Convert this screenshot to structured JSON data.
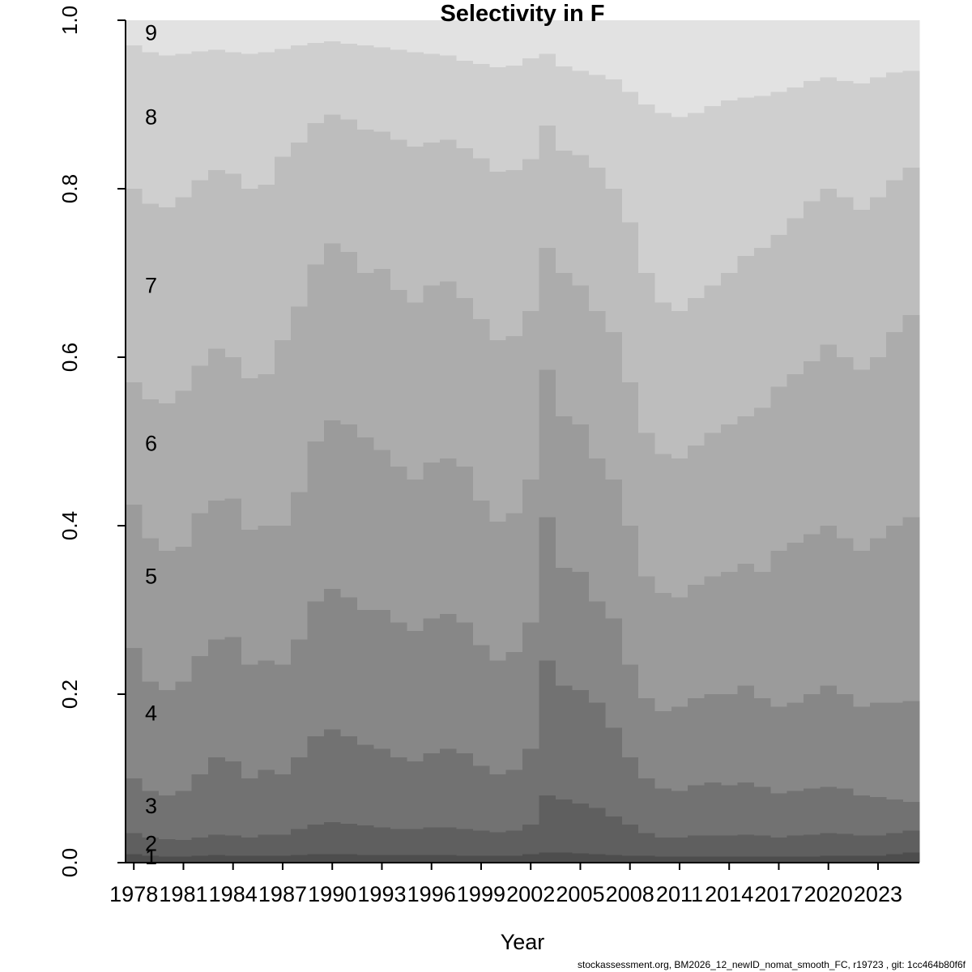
{
  "footer": {
    "text": "stockassessment.org, BM2026_12_newID_nomat_smooth_FC, r19723 , git: 1cc464b80f6f"
  },
  "chart_data": {
    "type": "area",
    "subtype": "stacked-proportion-barplot",
    "title": "Selectivity in F",
    "xlabel": "Year",
    "ylabel": "",
    "ylim": [
      0,
      1
    ],
    "grid": false,
    "legend": "none (age labels 1-9 printed inside left edge of bands)",
    "x": [
      1978,
      1979,
      1980,
      1981,
      1982,
      1983,
      1984,
      1985,
      1986,
      1987,
      1988,
      1989,
      1990,
      1991,
      1992,
      1993,
      1994,
      1995,
      1996,
      1997,
      1998,
      1999,
      2000,
      2001,
      2002,
      2003,
      2004,
      2005,
      2006,
      2007,
      2008,
      2009,
      2010,
      2011,
      2012,
      2013,
      2014,
      2015,
      2016,
      2017,
      2018,
      2019,
      2020,
      2021,
      2022,
      2023,
      2024,
      2025
    ],
    "x_ticks": [
      1978,
      1981,
      1984,
      1987,
      1990,
      1993,
      1996,
      1999,
      2002,
      2005,
      2008,
      2011,
      2014,
      2017,
      2020,
      2023
    ],
    "y_ticks": [
      0,
      0.2,
      0.4,
      0.6,
      0.8,
      1.0
    ],
    "y_tick_labels": [
      "0.0",
      "0.2",
      "0.4",
      "0.6",
      "0.8",
      "1.0"
    ],
    "colors": [
      "#4d4d4d",
      "#5f5f5f",
      "#727272",
      "#878787",
      "#9b9b9b",
      "#acacac",
      "#bdbdbd",
      "#cfcfcf",
      "#e2e2e2"
    ],
    "note": "values are cumulative upper bounds of stacked selectivity proportion per age, estimated from plot",
    "series": [
      {
        "age": "1",
        "cum": [
          0.01,
          0.008,
          0.007,
          0.007,
          0.008,
          0.009,
          0.008,
          0.008,
          0.008,
          0.008,
          0.009,
          0.01,
          0.01,
          0.01,
          0.009,
          0.009,
          0.009,
          0.009,
          0.009,
          0.009,
          0.008,
          0.008,
          0.008,
          0.008,
          0.01,
          0.012,
          0.012,
          0.011,
          0.01,
          0.009,
          0.008,
          0.008,
          0.007,
          0.007,
          0.007,
          0.007,
          0.007,
          0.007,
          0.007,
          0.007,
          0.007,
          0.007,
          0.008,
          0.008,
          0.008,
          0.008,
          0.01,
          0.012
        ]
      },
      {
        "age": "2",
        "cum": [
          0.035,
          0.03,
          0.028,
          0.027,
          0.03,
          0.033,
          0.032,
          0.03,
          0.033,
          0.033,
          0.04,
          0.045,
          0.048,
          0.046,
          0.044,
          0.042,
          0.04,
          0.04,
          0.042,
          0.042,
          0.04,
          0.038,
          0.036,
          0.038,
          0.045,
          0.08,
          0.075,
          0.07,
          0.065,
          0.055,
          0.045,
          0.035,
          0.03,
          0.03,
          0.032,
          0.032,
          0.032,
          0.033,
          0.032,
          0.03,
          0.032,
          0.033,
          0.035,
          0.034,
          0.032,
          0.032,
          0.035,
          0.038
        ]
      },
      {
        "age": "3",
        "cum": [
          0.1,
          0.085,
          0.08,
          0.085,
          0.105,
          0.125,
          0.12,
          0.1,
          0.11,
          0.105,
          0.125,
          0.15,
          0.158,
          0.15,
          0.14,
          0.135,
          0.125,
          0.12,
          0.13,
          0.135,
          0.13,
          0.115,
          0.105,
          0.11,
          0.135,
          0.24,
          0.21,
          0.205,
          0.19,
          0.16,
          0.125,
          0.1,
          0.088,
          0.085,
          0.092,
          0.095,
          0.092,
          0.095,
          0.09,
          0.082,
          0.085,
          0.088,
          0.09,
          0.088,
          0.08,
          0.078,
          0.075,
          0.072
        ]
      },
      {
        "age": "4",
        "cum": [
          0.255,
          0.215,
          0.205,
          0.215,
          0.245,
          0.265,
          0.268,
          0.235,
          0.24,
          0.235,
          0.265,
          0.31,
          0.325,
          0.315,
          0.3,
          0.3,
          0.285,
          0.275,
          0.29,
          0.295,
          0.285,
          0.258,
          0.24,
          0.25,
          0.285,
          0.41,
          0.35,
          0.345,
          0.31,
          0.29,
          0.235,
          0.195,
          0.18,
          0.185,
          0.195,
          0.2,
          0.2,
          0.21,
          0.195,
          0.185,
          0.19,
          0.2,
          0.21,
          0.2,
          0.185,
          0.19,
          0.19,
          0.192
        ]
      },
      {
        "age": "5",
        "cum": [
          0.425,
          0.385,
          0.37,
          0.375,
          0.415,
          0.43,
          0.432,
          0.395,
          0.4,
          0.4,
          0.44,
          0.5,
          0.525,
          0.52,
          0.505,
          0.49,
          0.47,
          0.455,
          0.475,
          0.48,
          0.47,
          0.43,
          0.405,
          0.415,
          0.455,
          0.585,
          0.53,
          0.52,
          0.48,
          0.455,
          0.4,
          0.34,
          0.32,
          0.315,
          0.33,
          0.34,
          0.345,
          0.355,
          0.345,
          0.37,
          0.38,
          0.39,
          0.4,
          0.385,
          0.37,
          0.385,
          0.4,
          0.41
        ]
      },
      {
        "age": "6",
        "cum": [
          0.57,
          0.55,
          0.545,
          0.56,
          0.59,
          0.61,
          0.6,
          0.575,
          0.58,
          0.62,
          0.66,
          0.71,
          0.735,
          0.725,
          0.7,
          0.705,
          0.68,
          0.665,
          0.685,
          0.69,
          0.67,
          0.645,
          0.62,
          0.625,
          0.655,
          0.73,
          0.7,
          0.685,
          0.655,
          0.63,
          0.57,
          0.51,
          0.485,
          0.48,
          0.495,
          0.51,
          0.52,
          0.53,
          0.54,
          0.565,
          0.58,
          0.595,
          0.615,
          0.6,
          0.585,
          0.6,
          0.63,
          0.65
        ]
      },
      {
        "age": "7",
        "cum": [
          0.8,
          0.782,
          0.778,
          0.79,
          0.81,
          0.822,
          0.818,
          0.8,
          0.805,
          0.838,
          0.855,
          0.878,
          0.888,
          0.882,
          0.87,
          0.868,
          0.858,
          0.85,
          0.855,
          0.858,
          0.848,
          0.836,
          0.82,
          0.822,
          0.835,
          0.875,
          0.845,
          0.84,
          0.825,
          0.8,
          0.76,
          0.7,
          0.665,
          0.655,
          0.67,
          0.685,
          0.7,
          0.72,
          0.73,
          0.745,
          0.765,
          0.785,
          0.8,
          0.79,
          0.775,
          0.79,
          0.81,
          0.825
        ]
      },
      {
        "age": "8",
        "cum": [
          0.97,
          0.962,
          0.958,
          0.96,
          0.963,
          0.965,
          0.962,
          0.96,
          0.962,
          0.966,
          0.97,
          0.973,
          0.975,
          0.972,
          0.97,
          0.968,
          0.965,
          0.962,
          0.96,
          0.958,
          0.952,
          0.948,
          0.944,
          0.946,
          0.955,
          0.96,
          0.945,
          0.94,
          0.935,
          0.93,
          0.915,
          0.9,
          0.89,
          0.885,
          0.89,
          0.898,
          0.905,
          0.908,
          0.91,
          0.915,
          0.92,
          0.928,
          0.932,
          0.928,
          0.925,
          0.932,
          0.938,
          0.94
        ]
      },
      {
        "age": "9",
        "cum": [
          1.0,
          1.0,
          1.0,
          1.0,
          1.0,
          1.0,
          1.0,
          1.0,
          1.0,
          1.0,
          1.0,
          1.0,
          1.0,
          1.0,
          1.0,
          1.0,
          1.0,
          1.0,
          1.0,
          1.0,
          1.0,
          1.0,
          1.0,
          1.0,
          1.0,
          1.0,
          1.0,
          1.0,
          1.0,
          1.0,
          1.0,
          1.0,
          1.0,
          1.0,
          1.0,
          1.0,
          1.0,
          1.0,
          1.0,
          1.0,
          1.0,
          1.0,
          1.0,
          1.0,
          1.0,
          1.0,
          1.0,
          1.0
        ]
      }
    ]
  }
}
